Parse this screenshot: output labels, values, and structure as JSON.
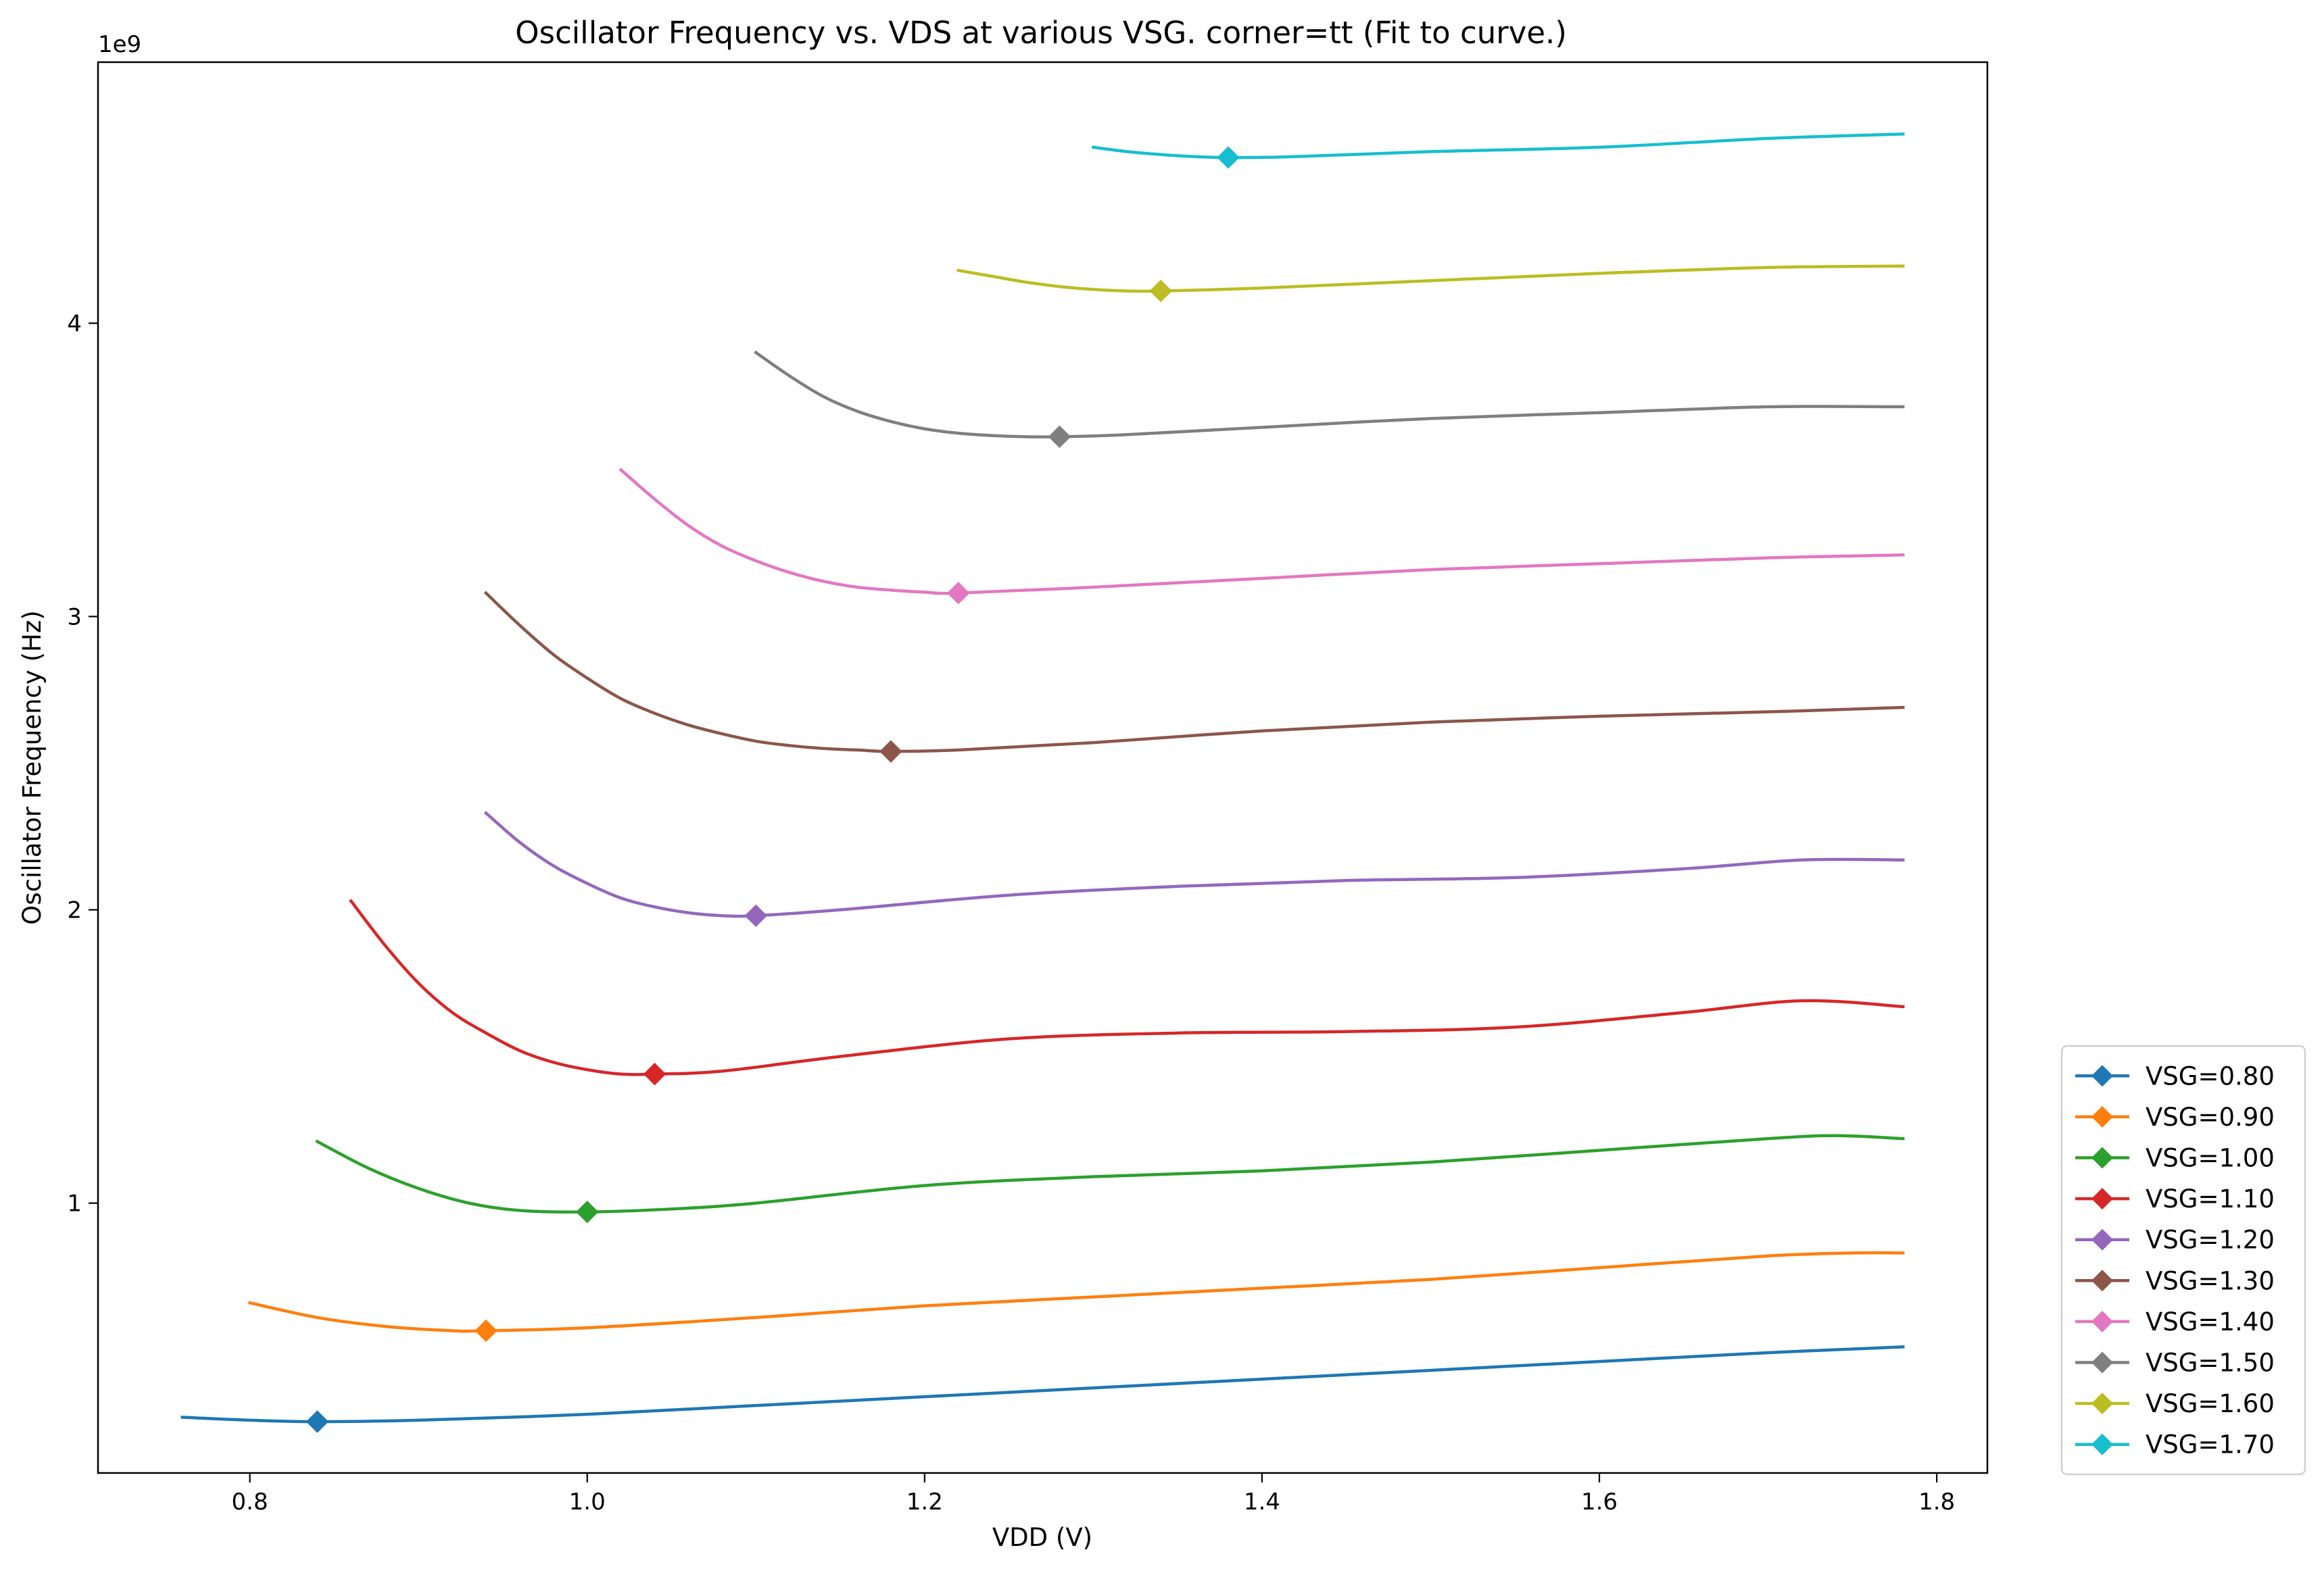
{
  "chart_data": {
    "type": "line",
    "title": "Oscillator Frequency vs. VDS at various VSG. corner=tt (Fit to curve.)",
    "xlabel": "VDD (V)",
    "ylabel": "Oscillator Frequency (Hz)",
    "y_offset_label": "1e9",
    "xlim": [
      0.71,
      1.83
    ],
    "ylim": [
      0.08,
      4.89
    ],
    "y_scale_factor": 1000000000,
    "x_ticks": [
      0.8,
      1.0,
      1.2,
      1.4,
      1.6,
      1.8
    ],
    "x_tick_labels": [
      "0.8",
      "1.0",
      "1.2",
      "1.4",
      "1.6",
      "1.8"
    ],
    "y_ticks": [
      1,
      2,
      3,
      4
    ],
    "y_tick_labels": [
      "1",
      "2",
      "3",
      "4"
    ],
    "grid": false,
    "legend_position": "outside-bottom-right",
    "series": [
      {
        "name": "VSG=0.80",
        "color": "#1f77b4",
        "x": [
          0.76,
          0.8,
          0.84,
          0.9,
          1.0,
          1.1,
          1.2,
          1.3,
          1.4,
          1.5,
          1.6,
          1.7,
          1.78
        ],
        "y": [
          0.27,
          0.26,
          0.255,
          0.26,
          0.28,
          0.31,
          0.34,
          0.37,
          0.4,
          0.43,
          0.46,
          0.49,
          0.51
        ],
        "marker": {
          "x": 0.84,
          "y": 0.255
        }
      },
      {
        "name": "VSG=0.90",
        "color": "#ff7f0e",
        "x": [
          0.8,
          0.84,
          0.88,
          0.92,
          0.94,
          1.0,
          1.1,
          1.2,
          1.3,
          1.4,
          1.5,
          1.6,
          1.7,
          1.75,
          1.78
        ],
        "y": [
          0.66,
          0.61,
          0.58,
          0.565,
          0.565,
          0.575,
          0.61,
          0.65,
          0.68,
          0.71,
          0.74,
          0.78,
          0.82,
          0.83,
          0.83
        ],
        "marker": {
          "x": 0.94,
          "y": 0.565
        }
      },
      {
        "name": "VSG=1.00",
        "color": "#2ca02c",
        "x": [
          0.84,
          0.87,
          0.9,
          0.93,
          0.96,
          1.0,
          1.05,
          1.1,
          1.2,
          1.3,
          1.4,
          1.5,
          1.6,
          1.7,
          1.74,
          1.78
        ],
        "y": [
          1.21,
          1.12,
          1.05,
          1.0,
          0.975,
          0.97,
          0.98,
          1.0,
          1.06,
          1.09,
          1.11,
          1.14,
          1.18,
          1.22,
          1.23,
          1.22
        ],
        "marker": {
          "x": 1.0,
          "y": 0.97
        }
      },
      {
        "name": "VSG=1.10",
        "color": "#d62728",
        "x": [
          0.86,
          0.88,
          0.9,
          0.92,
          0.94,
          0.96,
          0.98,
          1.0,
          1.02,
          1.04,
          1.08,
          1.15,
          1.25,
          1.35,
          1.45,
          1.55,
          1.65,
          1.72,
          1.78
        ],
        "y": [
          2.03,
          1.88,
          1.75,
          1.65,
          1.58,
          1.52,
          1.48,
          1.455,
          1.44,
          1.44,
          1.45,
          1.5,
          1.56,
          1.58,
          1.585,
          1.6,
          1.65,
          1.69,
          1.67
        ],
        "marker": {
          "x": 1.04,
          "y": 1.44
        }
      },
      {
        "name": "VSG=1.20",
        "color": "#9467bd",
        "x": [
          0.94,
          0.96,
          0.98,
          1.0,
          1.02,
          1.04,
          1.06,
          1.08,
          1.1,
          1.15,
          1.25,
          1.35,
          1.45,
          1.55,
          1.65,
          1.72,
          1.78
        ],
        "y": [
          2.33,
          2.23,
          2.15,
          2.09,
          2.04,
          2.01,
          1.99,
          1.98,
          1.98,
          2.0,
          2.05,
          2.08,
          2.1,
          2.11,
          2.14,
          2.17,
          2.17
        ],
        "marker": {
          "x": 1.1,
          "y": 1.98
        }
      },
      {
        "name": "VSG=1.30",
        "color": "#8c564b",
        "x": [
          0.94,
          0.96,
          0.98,
          1.0,
          1.02,
          1.04,
          1.06,
          1.08,
          1.1,
          1.12,
          1.14,
          1.16,
          1.18,
          1.22,
          1.3,
          1.4,
          1.5,
          1.6,
          1.7,
          1.78
        ],
        "y": [
          3.08,
          2.97,
          2.87,
          2.79,
          2.72,
          2.67,
          2.63,
          2.6,
          2.575,
          2.56,
          2.55,
          2.545,
          2.54,
          2.545,
          2.57,
          2.61,
          2.64,
          2.66,
          2.675,
          2.69
        ],
        "marker": {
          "x": 1.18,
          "y": 2.54
        }
      },
      {
        "name": "VSG=1.40",
        "color": "#e377c2",
        "x": [
          1.02,
          1.04,
          1.06,
          1.08,
          1.1,
          1.12,
          1.14,
          1.16,
          1.18,
          1.2,
          1.22,
          1.3,
          1.4,
          1.5,
          1.6,
          1.7,
          1.78
        ],
        "y": [
          3.5,
          3.4,
          3.31,
          3.24,
          3.19,
          3.15,
          3.12,
          3.1,
          3.09,
          3.083,
          3.08,
          3.1,
          3.13,
          3.16,
          3.18,
          3.2,
          3.21
        ],
        "marker": {
          "x": 1.22,
          "y": 3.08
        }
      },
      {
        "name": "VSG=1.50",
        "color": "#7f7f7f",
        "x": [
          1.1,
          1.12,
          1.14,
          1.16,
          1.18,
          1.2,
          1.22,
          1.24,
          1.26,
          1.28,
          1.32,
          1.4,
          1.5,
          1.6,
          1.7,
          1.78
        ],
        "y": [
          3.9,
          3.82,
          3.75,
          3.7,
          3.665,
          3.64,
          3.625,
          3.617,
          3.613,
          3.613,
          3.62,
          3.645,
          3.675,
          3.695,
          3.715,
          3.715
        ],
        "marker": {
          "x": 1.28,
          "y": 3.613
        }
      },
      {
        "name": "VSG=1.60",
        "color": "#bcbd22",
        "x": [
          1.22,
          1.24,
          1.26,
          1.28,
          1.3,
          1.32,
          1.34,
          1.4,
          1.5,
          1.6,
          1.7,
          1.78
        ],
        "y": [
          4.18,
          4.16,
          4.14,
          4.125,
          4.115,
          4.11,
          4.11,
          4.12,
          4.145,
          4.17,
          4.19,
          4.195
        ],
        "marker": {
          "x": 1.34,
          "y": 4.11
        }
      },
      {
        "name": "VSG=1.70",
        "color": "#17becf",
        "x": [
          1.3,
          1.32,
          1.34,
          1.36,
          1.38,
          1.42,
          1.5,
          1.6,
          1.7,
          1.78
        ],
        "y": [
          4.6,
          4.585,
          4.575,
          4.568,
          4.565,
          4.568,
          4.585,
          4.6,
          4.63,
          4.645
        ],
        "marker": {
          "x": 1.38,
          "y": 4.565
        }
      }
    ]
  }
}
